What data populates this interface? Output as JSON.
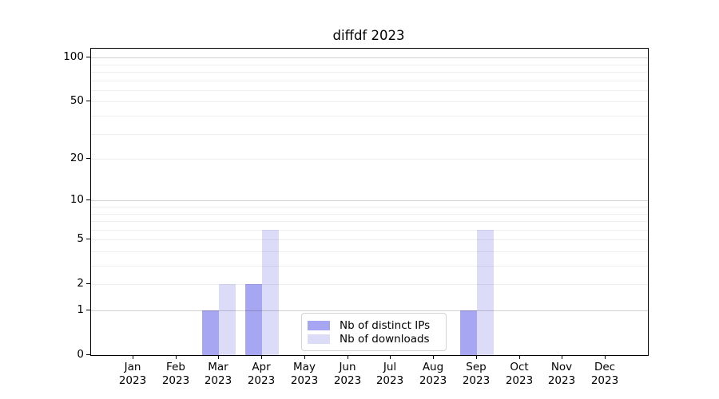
{
  "chart_data": {
    "type": "bar",
    "title": "diffdf 2023",
    "xlabel": "",
    "ylabel": "",
    "x": {
      "months": [
        "Jan",
        "Feb",
        "Mar",
        "Apr",
        "May",
        "Jun",
        "Jul",
        "Aug",
        "Sep",
        "Oct",
        "Nov",
        "Dec"
      ],
      "year": "2023"
    },
    "series": [
      {
        "name": "Nb of distinct IPs",
        "color": "#a6a6f3",
        "values": [
          0,
          0,
          1,
          2,
          0,
          0,
          0,
          0,
          1,
          0,
          0,
          0
        ]
      },
      {
        "name": "Nb of downloads",
        "color": "#dcdcf9",
        "values": [
          0,
          0,
          2,
          6,
          0,
          0,
          0,
          0,
          6,
          0,
          0,
          0
        ]
      }
    ],
    "y_axis": {
      "scale": "log10(1+x)",
      "tick_values": [
        0,
        1,
        2,
        5,
        10,
        20,
        50,
        100
      ],
      "major_grid_values": [
        1,
        10,
        100
      ],
      "minor_grid_values": [
        2,
        3,
        4,
        5,
        6,
        7,
        8,
        9,
        20,
        30,
        40,
        50,
        60,
        70,
        80,
        90
      ],
      "ylim": [
        0,
        115
      ]
    },
    "legend": {
      "position": "lower center",
      "entries": [
        "Nb of distinct IPs",
        "Nb of downloads"
      ]
    },
    "grid": "on, horizontal only, drawn above bars"
  }
}
